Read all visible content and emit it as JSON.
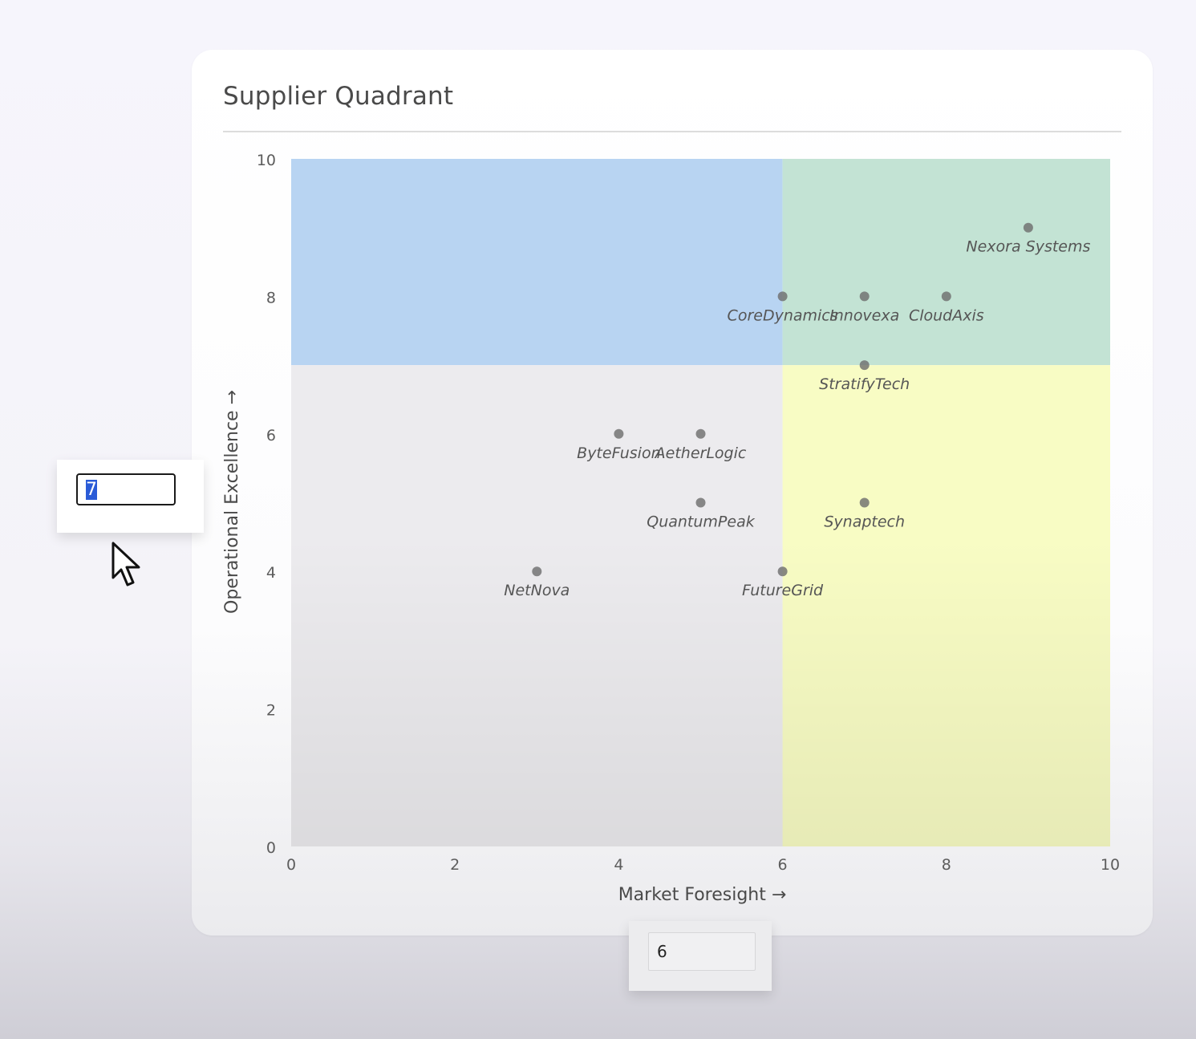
{
  "card": {
    "title": "Supplier Quadrant"
  },
  "chart_data": {
    "type": "scatter",
    "title": "Supplier Quadrant",
    "xlabel": "Market Foresight →",
    "ylabel": "Operational Excellence →",
    "xlim": [
      0,
      10
    ],
    "ylim": [
      0,
      10
    ],
    "xticks": [
      0,
      2,
      4,
      6,
      8,
      10
    ],
    "yticks": [
      0,
      2,
      4,
      6,
      8,
      10
    ],
    "grid": false,
    "quadrant_split": {
      "x": 6,
      "y": 7
    },
    "quadrant_colors": {
      "top_left": "#b8d4f2",
      "top_right": "#c3e3d4",
      "bottom_left": "#ecebee",
      "bottom_right": "#f8fcc4"
    },
    "point_color": "#6f6f6f",
    "points": [
      {
        "name": "Nexora Systems",
        "x": 9,
        "y": 9
      },
      {
        "name": "CoreDynamics",
        "x": 6,
        "y": 8
      },
      {
        "name": "Innovexa",
        "x": 7,
        "y": 8
      },
      {
        "name": "CloudAxis",
        "x": 8,
        "y": 8
      },
      {
        "name": "StratifyTech",
        "x": 7,
        "y": 7
      },
      {
        "name": "ByteFusion",
        "x": 4,
        "y": 6
      },
      {
        "name": "AetherLogic",
        "x": 5,
        "y": 6
      },
      {
        "name": "QuantumPeak",
        "x": 5,
        "y": 5
      },
      {
        "name": "Synaptech",
        "x": 7,
        "y": 5
      },
      {
        "name": "NetNova",
        "x": 3,
        "y": 4
      },
      {
        "name": "FutureGrid",
        "x": 6,
        "y": 4
      }
    ]
  },
  "editors": {
    "y_value": "7",
    "x_value": "6"
  },
  "icons": {
    "cursor": "mouse-pointer-icon"
  }
}
